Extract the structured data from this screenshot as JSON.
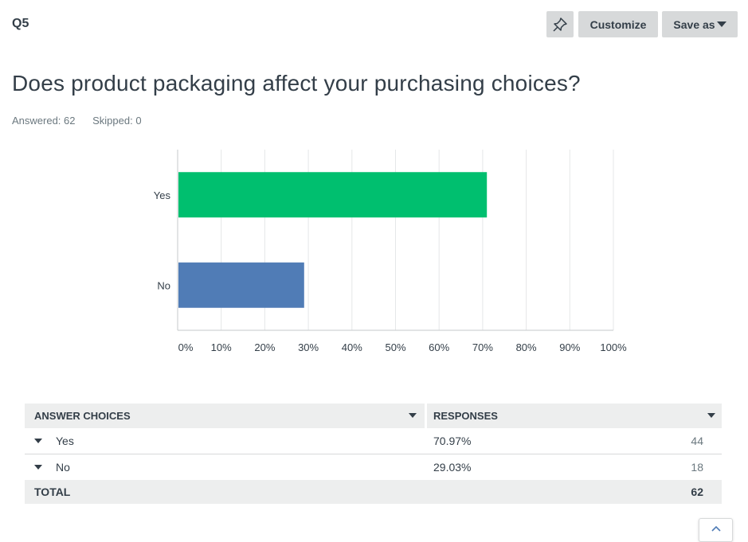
{
  "question": {
    "number": "Q5",
    "title": "Does product packaging affect your purchasing choices?",
    "answered": "Answered: 62",
    "skipped": "Skipped: 0"
  },
  "toolbar": {
    "pin_icon": "pin-icon",
    "customize_label": "Customize",
    "saveas_label": "Save as"
  },
  "chart_data": {
    "type": "bar",
    "orientation": "horizontal",
    "categories": [
      "Yes",
      "No"
    ],
    "values": [
      70.97,
      29.03
    ],
    "colors": [
      "#00bf6f",
      "#507cb6"
    ],
    "xlim": [
      0,
      100
    ],
    "x_ticks": [
      "0%",
      "10%",
      "20%",
      "30%",
      "40%",
      "50%",
      "60%",
      "70%",
      "80%",
      "90%",
      "100%"
    ],
    "grid": true
  },
  "table": {
    "headers": {
      "choices": "ANSWER CHOICES",
      "responses": "RESPONSES"
    },
    "rows": [
      {
        "label": "Yes",
        "percent": "70.97%",
        "count": "44"
      },
      {
        "label": "No",
        "percent": "29.03%",
        "count": "18"
      }
    ],
    "total": {
      "label": "TOTAL",
      "count": "62"
    }
  },
  "scroll_top_icon": "chevron-up-icon"
}
